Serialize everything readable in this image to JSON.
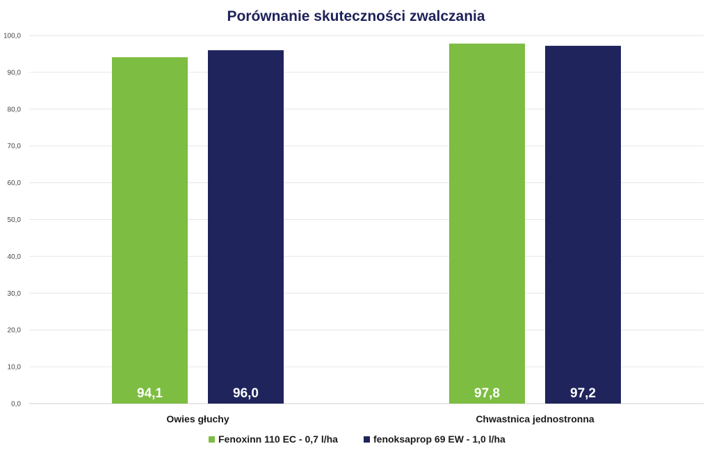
{
  "chart_data": {
    "type": "bar",
    "title": "Porównanie skuteczności zwalczania",
    "xlabel": "",
    "ylabel": "",
    "ylim": [
      0,
      100
    ],
    "yticks": [
      "0,0",
      "10,0",
      "20,0",
      "30,0",
      "40,0",
      "50,0",
      "60,0",
      "70,0",
      "80,0",
      "90,0",
      "100,0"
    ],
    "categories": [
      "Owies głuchy",
      "Chwastnica jednostronna"
    ],
    "series": [
      {
        "name": "Fenoxinn 110 EC  - 0,7 l/ha",
        "color": "#7dbd42",
        "values": [
          94.1,
          97.8
        ],
        "labels": [
          "94,1",
          "97,8"
        ]
      },
      {
        "name": "fenoksaprop 69 EW - 1,0 l/ha",
        "color": "#1f245c",
        "values": [
          96.0,
          97.2
        ],
        "labels": [
          "96,0",
          "97,2"
        ]
      }
    ],
    "grid": true,
    "legend": "bottom"
  }
}
